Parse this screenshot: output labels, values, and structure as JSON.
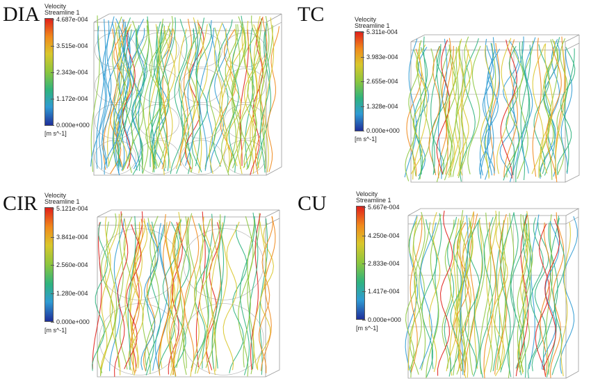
{
  "panels": [
    {
      "title": "DIA",
      "legend": {
        "variable": "Velocity",
        "object": "Streamline 1",
        "ticks": [
          "4.687e-004",
          "3.515e-004",
          "2.343e-004",
          "1.172e-004",
          "0.000e+000"
        ],
        "unit": "[m s^-1]"
      }
    },
    {
      "title": "TC",
      "legend": {
        "variable": "Velocity",
        "object": "Streamline 1",
        "ticks": [
          "5.311e-004",
          "3.983e-004",
          "2.655e-004",
          "1.328e-004",
          "0.000e+000"
        ],
        "unit": "[m s^-1]"
      }
    },
    {
      "title": "CIR",
      "legend": {
        "variable": "Velocity",
        "object": "Streamline 1",
        "ticks": [
          "5.121e-004",
          "3.841e-004",
          "2.560e-004",
          "1.280e-004",
          "0.000e+000"
        ],
        "unit": "[m s^-1]"
      }
    },
    {
      "title": "CU",
      "legend": {
        "variable": "Velocity",
        "object": "Streamline 1",
        "ticks": [
          "5.667e-004",
          "4.250e-004",
          "2.833e-004",
          "1.417e-004",
          "0.000e+000"
        ],
        "unit": "[m s^-1]"
      }
    }
  ],
  "colormap": [
    "#1f2f9a",
    "#2f9bd3",
    "#2fb37e",
    "#8cc63e",
    "#d9c72c",
    "#f08a1c",
    "#e0201b"
  ]
}
